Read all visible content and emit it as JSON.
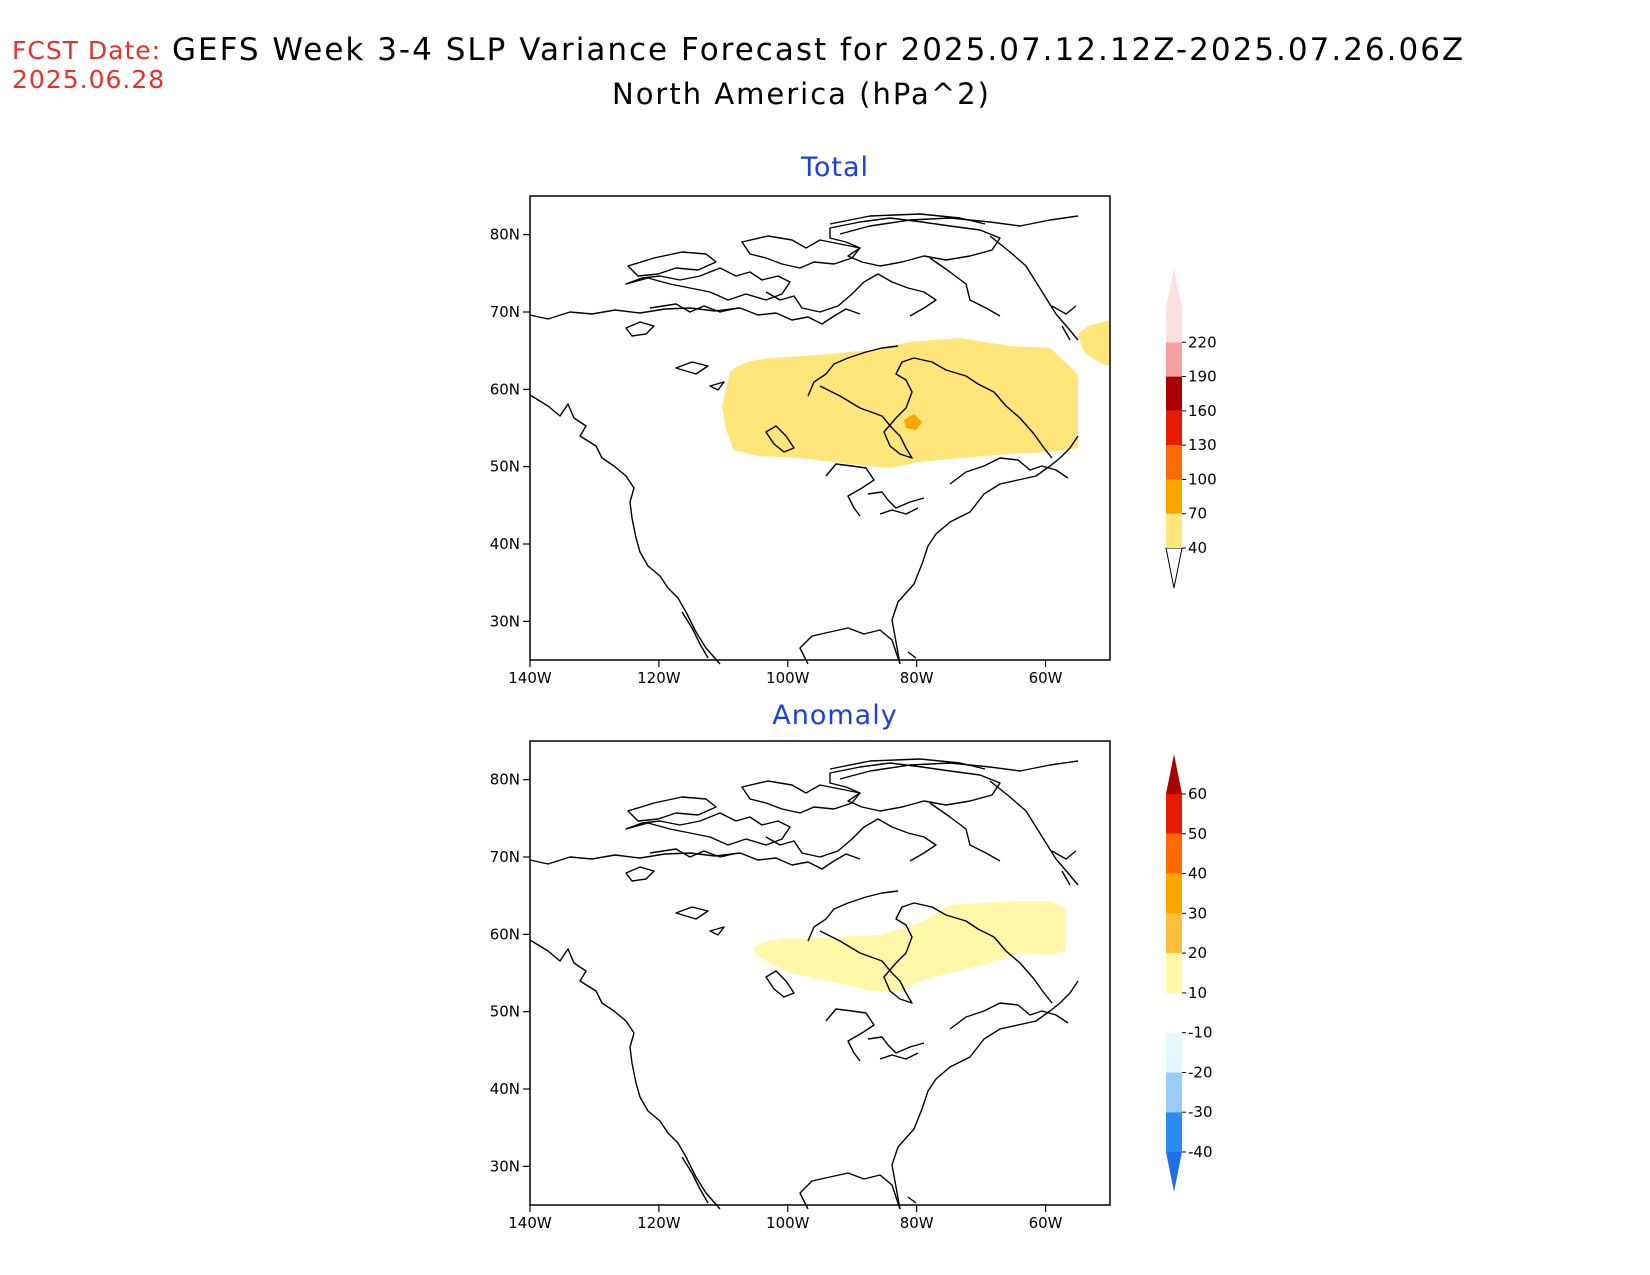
{
  "header": {
    "fcst_label": "FCST Date:",
    "fcst_date": "2025.06.28",
    "title": "GEFS Week 3-4 SLP Variance Forecast for 2025.07.12.12Z-2025.07.26.06Z",
    "subtitle": "North America (hPa^2)"
  },
  "map": {
    "lon_range": [
      -140,
      -50
    ],
    "lat_range": [
      25,
      85
    ],
    "lat_ticks": [
      "80N",
      "70N",
      "60N",
      "50N",
      "40N",
      "30N"
    ],
    "lon_ticks": [
      "140W",
      "120W",
      "100W",
      "80W",
      "60W"
    ]
  },
  "panels": [
    {
      "title": "Total",
      "colorbar": {
        "labels": [
          "40",
          "70",
          "100",
          "130",
          "160",
          "190",
          "220"
        ],
        "colors": [
          "#ffe57a",
          "#ffa500",
          "#ff6a00",
          "#e81b00",
          "#a80000",
          "#f4a0a0",
          "#fde0e0"
        ]
      }
    },
    {
      "title": "Anomaly",
      "colorbar": {
        "labels": [
          "-40",
          "-30",
          "-20",
          "-10",
          "10",
          "20",
          "30",
          "40",
          "50",
          "60"
        ],
        "colors": [
          "#1e6fe8",
          "#2a8cf0",
          "#98ccf6",
          "#e6f8ff",
          "#ffffff",
          "#fff8a8",
          "#ffbe3c",
          "#ffa500",
          "#ff6a00",
          "#e81b00",
          "#a80000"
        ]
      }
    }
  ]
}
